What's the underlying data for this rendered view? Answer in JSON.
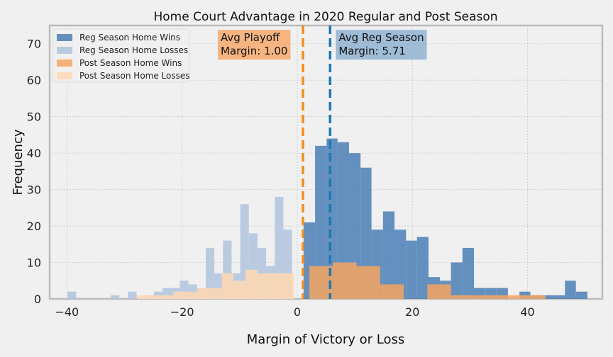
{
  "chart_data": {
    "type": "bar",
    "title": "Home Court Advantage in 2020 Regular and Post Season",
    "xlabel": "Margin of Victory or Loss",
    "ylabel": "Frequency",
    "xlim": [
      -43,
      53
    ],
    "ylim": [
      0,
      75
    ],
    "xticks": [
      -40,
      -20,
      0,
      20,
      40
    ],
    "xtick_labels": [
      "−40",
      "−20",
      "0",
      "20",
      "40"
    ],
    "yticks": [
      0,
      10,
      20,
      30,
      40,
      50,
      60,
      70
    ],
    "ytick_labels": [
      "0",
      "10",
      "20",
      "30",
      "40",
      "50",
      "60",
      "70"
    ],
    "grid": true,
    "legend_position": "top-left",
    "series": [
      {
        "name": "Reg Season Home Losses",
        "color": "#b0c4de",
        "bins": [
          [
            -39.9,
            -38.4,
            2
          ],
          [
            -38.4,
            -36.9,
            0
          ],
          [
            -36.9,
            -35.4,
            0
          ],
          [
            -35.4,
            -33.9,
            0
          ],
          [
            -33.9,
            -32.4,
            0
          ],
          [
            -32.4,
            -30.9,
            1
          ],
          [
            -30.9,
            -29.4,
            0
          ],
          [
            -29.4,
            -27.9,
            2
          ],
          [
            -27.9,
            -26.4,
            0
          ],
          [
            -26.4,
            -24.9,
            1
          ],
          [
            -24.9,
            -23.4,
            2
          ],
          [
            -23.4,
            -21.9,
            3
          ],
          [
            -21.9,
            -20.4,
            3
          ],
          [
            -20.4,
            -18.9,
            5
          ],
          [
            -18.9,
            -17.4,
            4
          ],
          [
            -17.4,
            -15.9,
            3
          ],
          [
            -15.9,
            -14.4,
            14
          ],
          [
            -14.4,
            -12.9,
            7
          ],
          [
            -12.9,
            -11.4,
            16
          ],
          [
            -11.4,
            -9.9,
            7
          ],
          [
            -9.9,
            -8.4,
            26
          ],
          [
            -8.4,
            -6.9,
            18
          ],
          [
            -6.9,
            -5.4,
            14
          ],
          [
            -5.4,
            -3.9,
            9
          ],
          [
            -3.9,
            -2.4,
            28
          ],
          [
            -2.4,
            -0.9,
            19
          ]
        ]
      },
      {
        "name": "Reg Season Home Wins",
        "color": "#4a7fb5",
        "bins": [
          [
            1.1,
            3.1,
            21
          ],
          [
            3.1,
            5.1,
            42
          ],
          [
            5.1,
            7.0,
            44
          ],
          [
            7.0,
            9.0,
            43
          ],
          [
            9.0,
            11.0,
            40
          ],
          [
            11.0,
            12.9,
            36
          ],
          [
            12.9,
            14.9,
            19
          ],
          [
            14.9,
            16.9,
            24
          ],
          [
            16.9,
            18.9,
            19
          ],
          [
            18.9,
            20.8,
            16
          ],
          [
            20.8,
            22.8,
            17
          ],
          [
            22.8,
            24.8,
            6
          ],
          [
            24.8,
            26.7,
            5
          ],
          [
            26.7,
            28.7,
            10
          ],
          [
            28.7,
            30.7,
            14
          ],
          [
            30.7,
            32.7,
            3
          ],
          [
            32.7,
            34.6,
            3
          ],
          [
            34.6,
            36.6,
            3
          ],
          [
            36.6,
            38.6,
            0
          ],
          [
            38.6,
            40.5,
            2
          ],
          [
            40.5,
            42.5,
            1
          ],
          [
            42.5,
            44.5,
            1
          ],
          [
            44.5,
            46.5,
            1
          ],
          [
            46.5,
            48.4,
            5
          ],
          [
            48.4,
            50.4,
            2
          ]
        ]
      },
      {
        "name": "Post Season Home Losses",
        "color": "#ffd8b2",
        "bins": [
          [
            -27.8,
            -25.7,
            1
          ],
          [
            -25.7,
            -23.6,
            1
          ],
          [
            -23.6,
            -21.5,
            1
          ],
          [
            -21.5,
            -19.4,
            2
          ],
          [
            -19.4,
            -17.3,
            2
          ],
          [
            -17.3,
            -15.2,
            3
          ],
          [
            -15.2,
            -13.1,
            3
          ],
          [
            -13.1,
            -11.1,
            7
          ],
          [
            -11.1,
            -9.0,
            5
          ],
          [
            -9.0,
            -6.9,
            8
          ],
          [
            -6.9,
            -4.8,
            7
          ],
          [
            -4.8,
            -2.7,
            7
          ],
          [
            -2.7,
            -0.6,
            7
          ]
        ]
      },
      {
        "name": "Post Season Home Wins",
        "color": "#f5a560",
        "bins": [
          [
            2.1,
            6.2,
            9
          ],
          [
            6.2,
            10.3,
            10
          ],
          [
            10.3,
            14.4,
            9
          ],
          [
            14.4,
            18.5,
            4
          ],
          [
            18.5,
            22.6,
            0
          ],
          [
            22.6,
            26.7,
            4
          ],
          [
            26.7,
            30.8,
            1
          ],
          [
            30.8,
            34.9,
            1
          ],
          [
            34.9,
            39.0,
            1
          ],
          [
            39.0,
            43.1,
            1
          ]
        ]
      }
    ],
    "legend_order": [
      "Reg Season Home Wins",
      "Reg Season Home Losses",
      "Post Season Home Wins",
      "Post Season Home Losses"
    ],
    "vlines": [
      {
        "x": 1.0,
        "color": "#f28e1c",
        "label": "Avg Playoff Margin"
      },
      {
        "x": 5.71,
        "color": "#1f77b4",
        "label": "Avg Reg Season Margin"
      }
    ],
    "annotations": [
      {
        "line1": "Avg Playoff",
        "line2": "Margin: 1.00",
        "bg": "#f5b07a",
        "anchor_x": -13.3,
        "anchor_y": 70.5
      },
      {
        "line1": "Avg Reg Season",
        "line2": "Margin: 5.71",
        "bg": "#9ab8d4",
        "anchor_x": 7.2,
        "anchor_y": 70.5
      }
    ]
  }
}
